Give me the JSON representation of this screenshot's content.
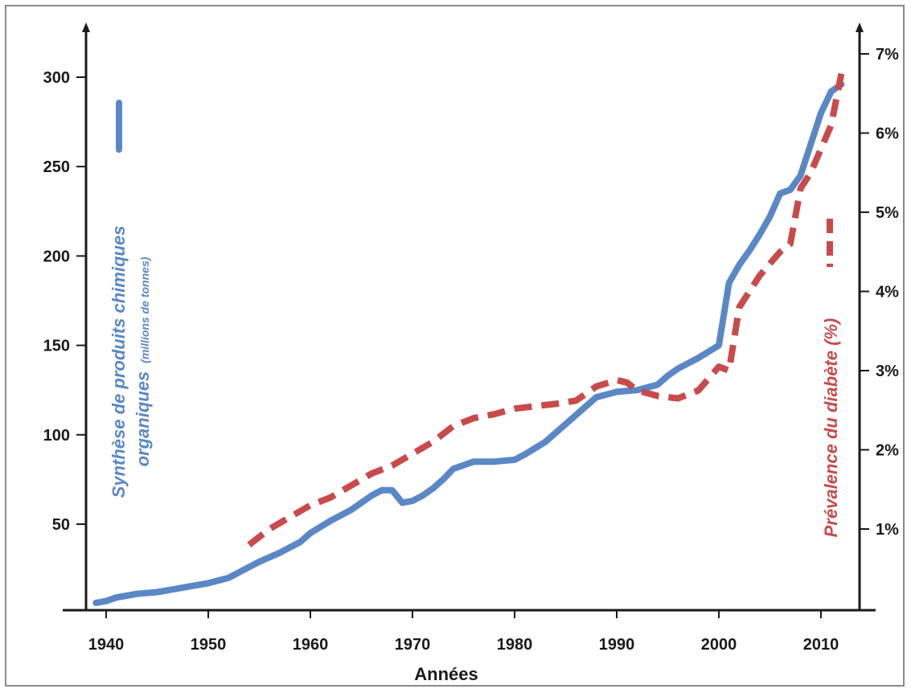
{
  "chart_data": {
    "type": "line",
    "xlabel": "Années",
    "ylabel_left": {
      "main": "Synthèse de produits chimiques",
      "line2": "organiques",
      "unit": "(millions de tonnes)"
    },
    "ylabel_right": "Prévalence du diabète (%)",
    "x_ticks": [
      "1940",
      "1950",
      "1960",
      "1970",
      "1980",
      "1990",
      "2000",
      "2010"
    ],
    "y_left_ticks": [
      "50",
      "100",
      "150",
      "200",
      "250",
      "300"
    ],
    "y_right_ticks": [
      "1%",
      "2%",
      "3%",
      "4%",
      "5%",
      "6%",
      "7%"
    ],
    "xlim": [
      1937.5,
      2013
    ],
    "ylim_left": [
      4,
      300
    ],
    "ylim_right": [
      0,
      7
    ],
    "colors": {
      "chemicals": "#5a87c6",
      "diabetes": "#c94a4a",
      "axis": "#1a1a1a"
    },
    "series": [
      {
        "name": "Synthèse de produits chimiques organiques",
        "axis": "left",
        "style": "solid",
        "x": [
          1939,
          1940,
          1941,
          1942,
          1943,
          1945,
          1946,
          1948,
          1950,
          1952,
          1953,
          1955,
          1957,
          1959,
          1960,
          1962,
          1964,
          1965,
          1966,
          1967,
          1968,
          1969,
          1970,
          1971,
          1972,
          1973,
          1974,
          1976,
          1978,
          1980,
          1981,
          1983,
          1985,
          1987,
          1988,
          1990,
          1992,
          1994,
          1995,
          1996,
          1998,
          2000,
          2001,
          2002,
          2003,
          2004,
          2005,
          2006,
          2007,
          2008,
          2010,
          2011,
          2012
        ],
        "values": [
          6,
          7,
          9,
          10,
          11,
          12,
          13,
          15,
          17,
          20,
          23,
          29,
          34,
          40,
          45,
          52,
          58,
          62,
          66,
          69,
          69,
          62,
          63,
          66,
          70,
          75,
          81,
          85,
          85,
          86,
          89,
          96,
          106,
          116,
          121,
          124,
          125,
          128,
          133,
          137,
          143,
          150,
          185,
          195,
          203,
          212,
          222,
          235,
          237,
          245,
          280,
          292,
          296
        ]
      },
      {
        "name": "Prévalence du diabète (%)",
        "axis": "right",
        "style": "dashed",
        "x": [
          1954,
          1956,
          1958,
          1960,
          1962,
          1964,
          1966,
          1968,
          1970,
          1972,
          1974,
          1976,
          1978,
          1980,
          1982,
          1984,
          1986,
          1988,
          1990,
          1991,
          1992,
          1994,
          1996,
          1998,
          2000,
          2001,
          2002,
          2003,
          2004,
          2006,
          2007,
          2008,
          2009,
          2010,
          2011,
          2012
        ],
        "values": [
          0.8,
          1.0,
          1.15,
          1.3,
          1.4,
          1.55,
          1.7,
          1.8,
          1.95,
          2.1,
          2.3,
          2.4,
          2.45,
          2.52,
          2.55,
          2.58,
          2.62,
          2.8,
          2.88,
          2.85,
          2.75,
          2.68,
          2.65,
          2.75,
          3.05,
          3.0,
          3.8,
          4.0,
          4.2,
          4.5,
          4.6,
          5.3,
          5.5,
          5.8,
          6.1,
          6.75
        ]
      }
    ],
    "legend_marks": [
      {
        "series": "Synthèse de produits chimiques organiques",
        "style": "solid",
        "placement": "left, beside axis title"
      },
      {
        "series": "Prévalence du diabète (%)",
        "style": "dashed",
        "placement": "right, beside axis title"
      }
    ],
    "grid": false
  }
}
